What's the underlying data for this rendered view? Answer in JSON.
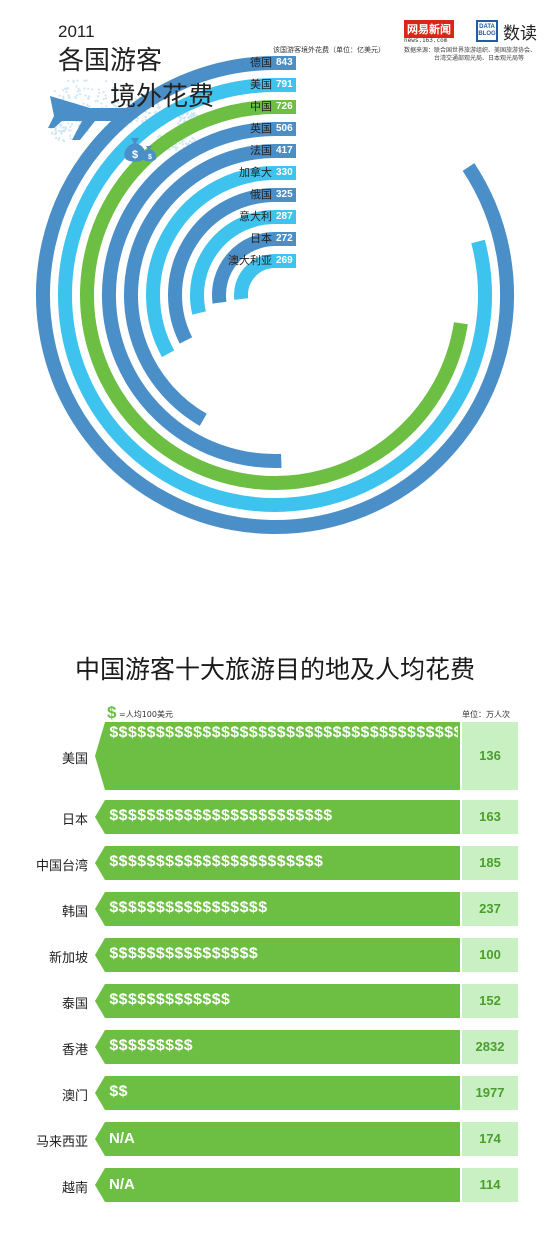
{
  "header": {
    "year": "2011",
    "title_line1": "各国游客",
    "title_line2": "境外花费",
    "logo_netease": "网易新闻",
    "logo_url": "news.163.com",
    "logo_datablog": "DATA BLOG",
    "logo_shudu": "数读",
    "source_label": "数据来源：",
    "source_line1": "联合国世界旅游组织、美国旅游协会、",
    "source_line2": "台湾交通部观光局、日本观光局等",
    "unit_label": "该国游客境外花费（单位：亿美元）"
  },
  "colors": {
    "dark_blue": "#4b8fc8",
    "light_blue": "#3ec3ef",
    "green": "#6dbf43",
    "pale_green": "#c8f0c2"
  },
  "icons": [
    "airplane-icon",
    "money-bag-icon",
    "world-map-icon",
    "dollar-icon"
  ],
  "chart_data": [
    {
      "type": "bar",
      "subtype": "radial",
      "categories": [
        "德国",
        "美国",
        "中国",
        "英国",
        "法国",
        "加拿大",
        "俄国",
        "意大利",
        "日本",
        "澳大利亚"
      ],
      "values": [
        843,
        791,
        726,
        506,
        417,
        330,
        325,
        287,
        272,
        269
      ],
      "series_colors": [
        "#4b8fc8",
        "#3ec3ef",
        "#6dbf43",
        "#4b8fc8",
        "#4b8fc8",
        "#3ec3ef",
        "#4b8fc8",
        "#3ec3ef",
        "#4b8fc8",
        "#3ec3ef"
      ],
      "ylabel": "该国游客境外花费（单位：亿美元）"
    },
    {
      "type": "bar",
      "title": "中国游客十大旅游目的地及人均花费",
      "legend": "=人均100美元",
      "unit": "单位：万人次",
      "categories": [
        "美国",
        "日本",
        "中国台湾",
        "韩国",
        "新加坡",
        "泰国",
        "香港",
        "澳门",
        "马来西亚",
        "越南"
      ],
      "per_capita_spending_units": [
        63,
        24,
        23,
        17,
        16,
        13,
        9,
        2,
        null,
        null
      ],
      "na_label": "N/A",
      "visitors": [
        136,
        163,
        185,
        237,
        100,
        152,
        2832,
        1977,
        174,
        114
      ]
    }
  ]
}
